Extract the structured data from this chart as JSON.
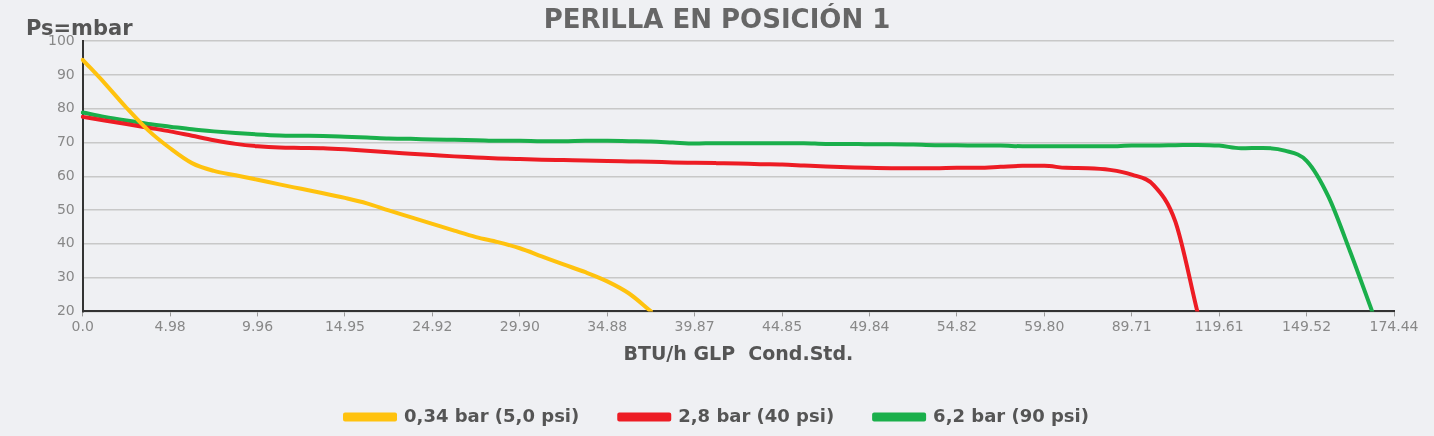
{
  "chart_data": {
    "type": "line",
    "title": "PERILLA EN POSICIÓN 1",
    "xlabel": "BTU/h GLP  Cond.Std.",
    "ylabel": "Ps=mbar",
    "categories": [
      "0.0",
      null,
      null,
      null,
      "4.98",
      null,
      null,
      null,
      "9.96",
      null,
      null,
      null,
      "14.95",
      null,
      null,
      null,
      "24.92",
      null,
      null,
      null,
      "29.90",
      null,
      null,
      null,
      "34.88",
      null,
      null,
      null,
      "39.87",
      null,
      null,
      null,
      "44.85",
      null,
      null,
      null,
      "49.84",
      null,
      null,
      null,
      "54.82",
      null,
      null,
      null,
      "59.80",
      null,
      null,
      null,
      "89.71",
      null,
      null,
      null,
      "119.61",
      null,
      null,
      null,
      "149.52",
      null,
      null,
      null,
      "174.44"
    ],
    "series": [
      {
        "name": "0,34 bar (5,0 psi)",
        "color": "#ffc20e",
        "values": [
          94.5,
          87.6,
          80.3,
          73.6,
          68.3,
          63.9,
          61.6,
          60.3,
          59,
          57.6,
          56.3,
          55,
          53.6,
          52,
          49.9,
          47.9,
          45.9,
          43.9,
          42,
          40.5,
          38.7,
          36.3,
          33.9,
          31.6,
          28.9,
          25.3,
          20,
          null,
          null,
          null,
          null,
          null,
          null,
          null,
          null,
          null,
          null,
          null,
          null,
          null,
          null,
          null,
          null,
          null,
          null,
          null,
          null,
          null,
          null,
          null,
          null,
          null,
          null,
          null,
          null,
          null,
          null,
          null,
          null,
          null,
          null
        ]
      },
      {
        "name": "2,8 bar (40 psi)",
        "color": "#ed1c24",
        "values": [
          77.6,
          76.5,
          75.5,
          74.4,
          73.3,
          72,
          70.7,
          69.6,
          68.9,
          68.5,
          68.4,
          68.3,
          68,
          67.6,
          67.1,
          66.7,
          66.3,
          65.9,
          65.6,
          65.3,
          65.1,
          64.9,
          64.8,
          64.7,
          64.5,
          64.4,
          64.3,
          64.1,
          64,
          63.9,
          63.8,
          63.6,
          63.5,
          63.2,
          62.9,
          62.7,
          62.5,
          62.4,
          62.4,
          62.4,
          62.5,
          62.5,
          62.8,
          63.1,
          63.1,
          62.5,
          62.4,
          61.9,
          60.5,
          57.4,
          46.5,
          20,
          null,
          null,
          null,
          null,
          null,
          null,
          null,
          null,
          null
        ]
      },
      {
        "name": "6,2 bar (90 psi)",
        "color": "#1aaf4b",
        "values": [
          78.9,
          77.6,
          76.5,
          75.5,
          74.7,
          73.9,
          73.3,
          72.8,
          72.4,
          72.1,
          72,
          71.9,
          71.7,
          71.5,
          71.2,
          71.1,
          70.9,
          70.8,
          70.7,
          70.5,
          70.5,
          70.4,
          70.4,
          70.5,
          70.5,
          70.4,
          70.3,
          70,
          69.7,
          69.8,
          69.8,
          69.8,
          69.8,
          69.8,
          69.6,
          69.6,
          69.5,
          69.5,
          69.4,
          69.2,
          69.2,
          69.1,
          69.1,
          68.9,
          68.9,
          68.9,
          68.9,
          68.9,
          69.1,
          69.1,
          69.2,
          69.3,
          69.1,
          68.3,
          68.4,
          67.6,
          64.6,
          54,
          37.6,
          20,
          null
        ]
      }
    ],
    "ylim": [
      20,
      100
    ],
    "yticks": [
      20,
      30,
      40,
      50,
      60,
      70,
      80,
      90,
      100
    ],
    "grid": "y",
    "legend": "bottom"
  }
}
